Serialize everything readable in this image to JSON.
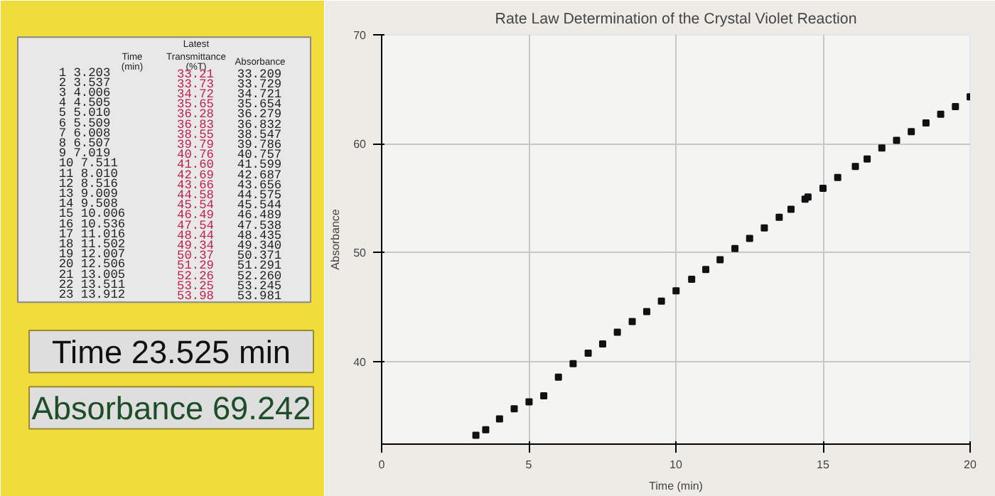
{
  "chart_data": [
    {
      "type": "other",
      "annotations": [
        "\t\tLatest\t",
        "\tTime (min)\tTransmittance (%T)\tAbsorbance",
        "1\t3.203\t33.21\t33.209",
        "2\t3.537\t33.73\t33.729",
        "3\t4.006\t34.72\t34.721",
        "4\t4.505\t35.65\t35.654",
        "5\t5.010\t36.28\t36.279",
        "6\t5.509\t36.83\t36.832",
        "7\t6.008\t38.55\t38.547",
        "8\t6.507\t39.79\t39.786",
        "9\t7.019\t40.76\t40.757",
        "10\t7.511\t41.60\t41.599",
        "11\t8.010\t42.69\t42.687",
        "12\t8.516\t43.66\t43.656",
        "13\t9.009\t44.58\t44.575",
        "14\t9.508\t45.54\t45.544",
        "15\t10.006\t46.49\t46.489",
        "16\t10.536\t47.54\t47.538",
        "17\t11.016\t48.44\t48.435",
        "18\t11.502\t49.34\t49.340",
        "19\t12.007\t50.37\t50.371",
        "20\t12.506\t51.29\t51.291",
        "21\t13.005\t52.26\t52.260",
        "22\t13.511\t53.25\t53.245",
        "23\t13.912\t53.98\t53.981",
        "Time 23.525 min",
        "Absorbance 69.242"
      ]
    },
    {
      "type": "scatter",
      "title": "Rate Law Determination of the Crystal Violet Reaction",
      "xlabel": "Time (min)",
      "ylabel": "Absorbance",
      "x": [
        3.203,
        3.537,
        4.006,
        4.505,
        5.01,
        5.509,
        6.008,
        6.507,
        7.019,
        7.511,
        8.01,
        8.516,
        9.009,
        9.508,
        10.006,
        10.536,
        11.016,
        11.502,
        12.007,
        12.506,
        13.005,
        13.511,
        13.912,
        14.39,
        14.49,
        15.0,
        15.5,
        16.1,
        16.5,
        17.0,
        17.5,
        18.0,
        18.5,
        19.0,
        19.5,
        20.0
      ],
      "values": [
        33.209,
        33.729,
        34.721,
        35.654,
        36.279,
        36.832,
        38.547,
        39.786,
        40.757,
        41.599,
        42.687,
        43.656,
        44.575,
        45.544,
        46.489,
        47.538,
        48.435,
        49.34,
        50.371,
        51.291,
        52.26,
        53.245,
        53.981,
        54.9,
        55.1,
        55.9,
        56.9,
        57.9,
        58.6,
        59.6,
        60.3,
        61.1,
        61.9,
        62.7,
        63.4,
        64.3
      ],
      "color": "#111111",
      "marker": "square",
      "grid": true,
      "xlim": [
        0,
        20
      ],
      "ylim": [
        32.4,
        70
      ],
      "xticks": [
        0,
        5,
        10,
        15,
        20
      ],
      "yticks": [
        40,
        50,
        60,
        70
      ]
    }
  ]
}
